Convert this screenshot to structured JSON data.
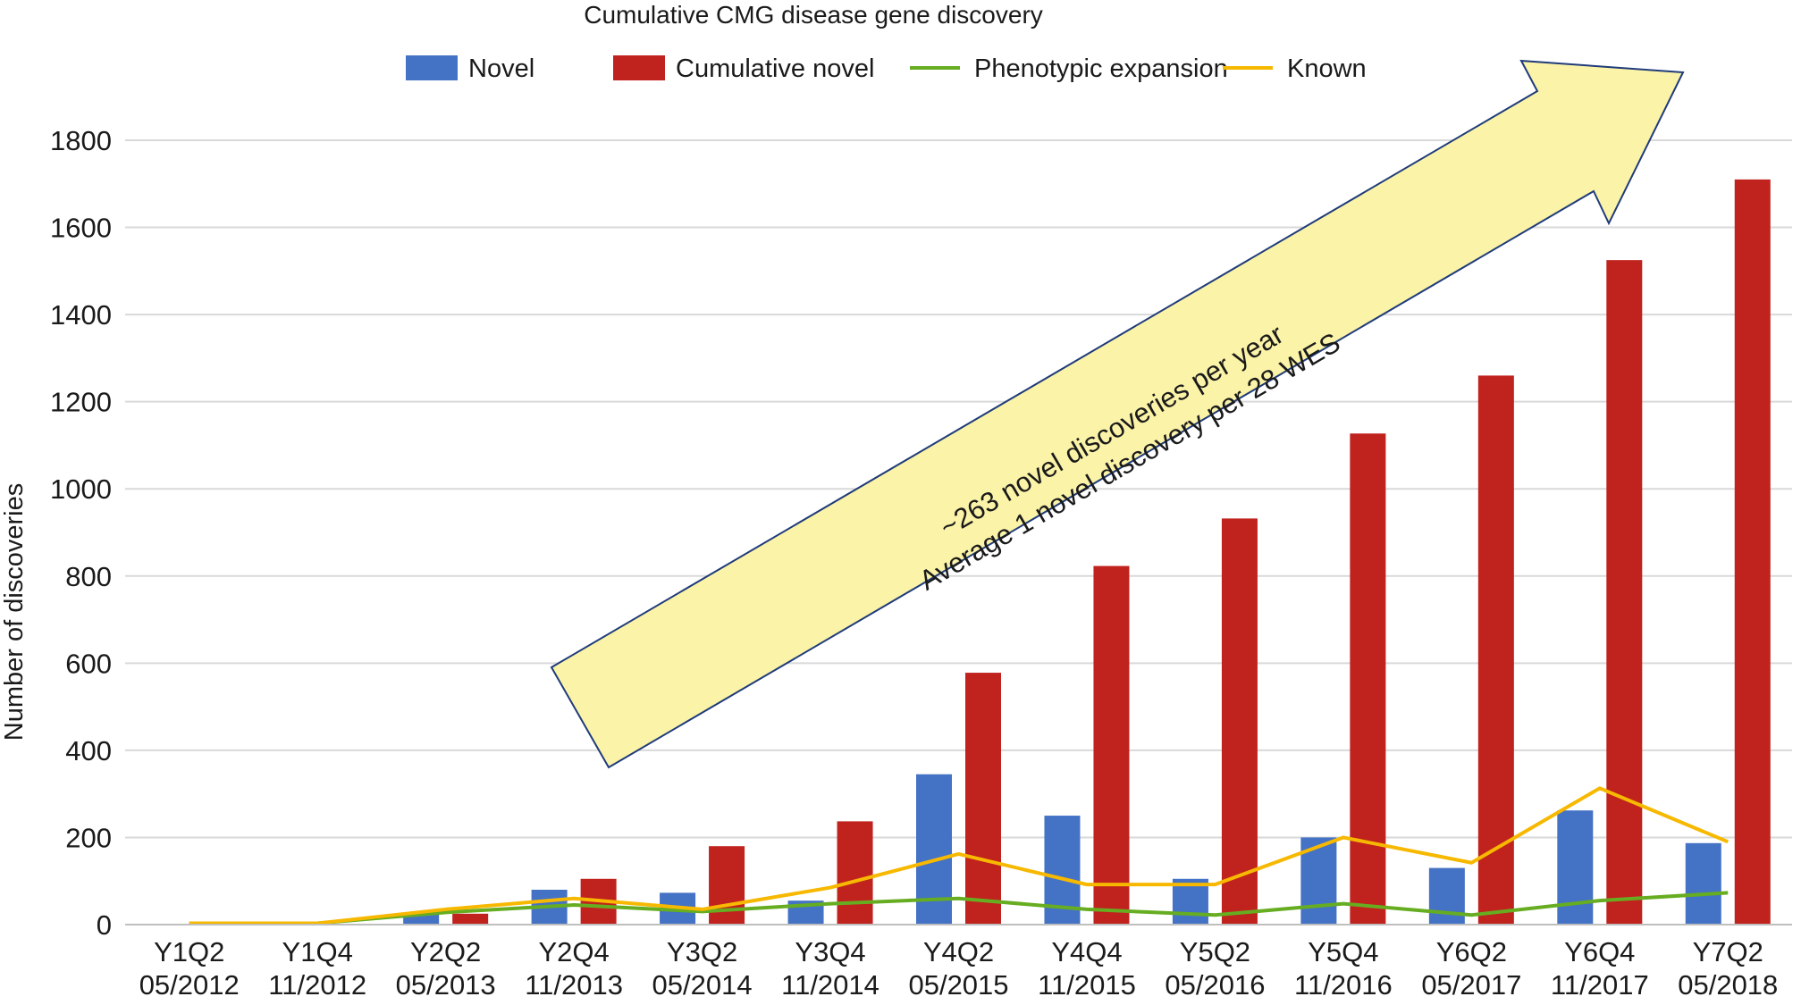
{
  "chart_data": {
    "type": "bar",
    "title": "Cumulative CMG disease gene discovery",
    "xlabel": "",
    "ylabel": "Number of discoveries",
    "ylim": [
      0,
      1800
    ],
    "yticks": [
      0,
      200,
      400,
      600,
      800,
      1000,
      1200,
      1400,
      1600,
      1800
    ],
    "grid": true,
    "legend_position": "top-center",
    "categories": [
      [
        "Y1Q2",
        "05/2012"
      ],
      [
        "Y1Q4",
        "11/2012"
      ],
      [
        "Y2Q2",
        "05/2013"
      ],
      [
        "Y2Q4",
        "11/2013"
      ],
      [
        "Y3Q2",
        "05/2014"
      ],
      [
        "Y3Q4",
        "11/2014"
      ],
      [
        "Y4Q2",
        "05/2015"
      ],
      [
        "Y4Q4",
        "11/2015"
      ],
      [
        "Y5Q2",
        "05/2016"
      ],
      [
        "Y5Q4",
        "11/2016"
      ],
      [
        "Y6Q2",
        "05/2017"
      ],
      [
        "Y6Q4",
        "11/2017"
      ],
      [
        "Y7Q2",
        "05/2018"
      ]
    ],
    "series": [
      {
        "name": "Novel",
        "kind": "bar",
        "color": "#4472c4",
        "values": [
          0,
          0,
          25,
          80,
          73,
          55,
          345,
          250,
          105,
          200,
          130,
          262,
          187
        ]
      },
      {
        "name": "Cumulative novel",
        "kind": "bar",
        "color": "#c0221d",
        "values": [
          0,
          0,
          25,
          105,
          180,
          237,
          578,
          823,
          932,
          1127,
          1260,
          1525,
          1710
        ]
      },
      {
        "name": "Phenotypic expansion",
        "kind": "line",
        "color": "#66ad21",
        "values": [
          3,
          3,
          28,
          45,
          30,
          48,
          60,
          35,
          22,
          48,
          22,
          55,
          73
        ]
      },
      {
        "name": "Known",
        "kind": "line",
        "color": "#f7b800",
        "values": [
          3,
          3,
          35,
          60,
          35,
          85,
          162,
          92,
          92,
          200,
          142,
          313,
          190
        ]
      }
    ],
    "annotation": {
      "lines": [
        "~263 novel discoveries per year",
        "Average 1 novel discovery per 28 WES"
      ],
      "fill": "#fbf3a8",
      "stroke": "#1f3b7a"
    }
  }
}
